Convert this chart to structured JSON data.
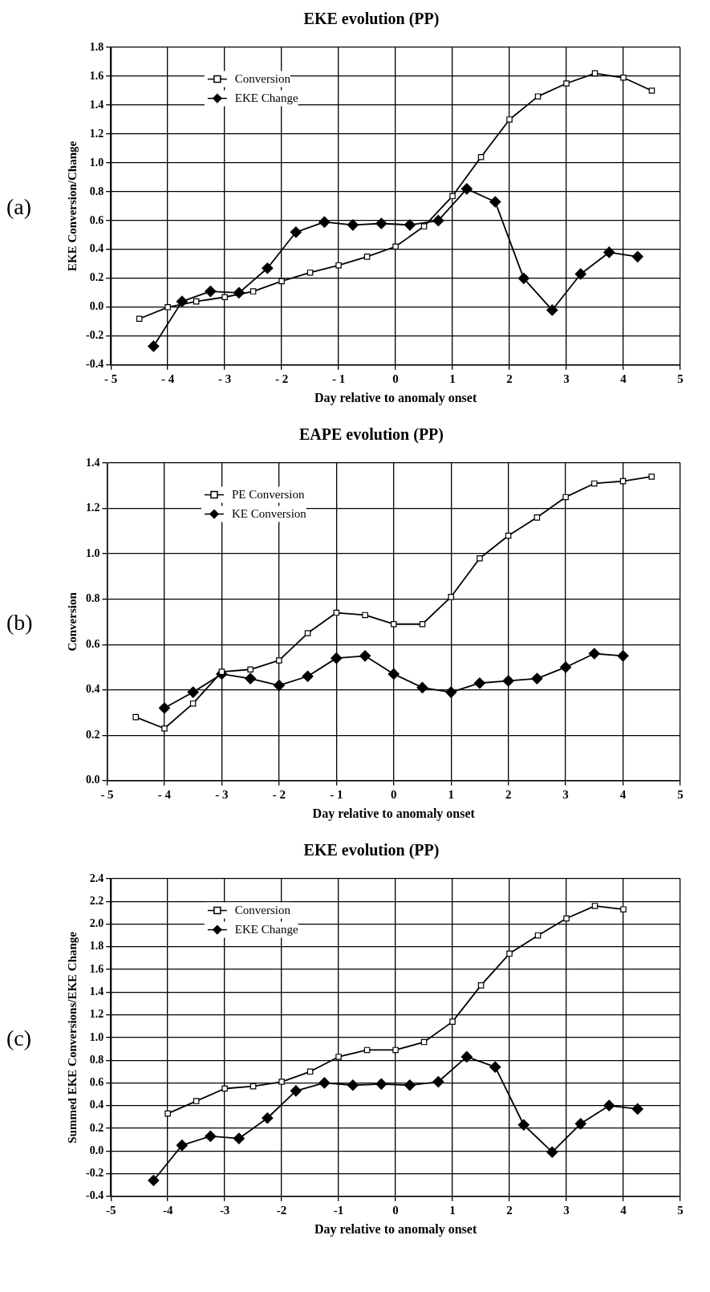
{
  "chart_data": [
    {
      "type": "line",
      "title": "EKE evolution (PP)",
      "xlabel": "Day relative to anomaly onset",
      "ylabel": "EKE Conversion/Change",
      "annotations": [
        "(a)"
      ],
      "grid": true,
      "legend": "top left",
      "line_style": "solid",
      "xlim": [
        -5,
        5
      ],
      "xticks": [
        {
          "value": -5,
          "label": "- 5"
        },
        {
          "value": -4,
          "label": "- 4"
        },
        {
          "value": -3,
          "label": "- 3"
        },
        {
          "value": -2,
          "label": "- 2"
        },
        {
          "value": -1,
          "label": "- 1"
        },
        0,
        1,
        2,
        3,
        4,
        5
      ],
      "ylim": [
        -0.4,
        1.8
      ],
      "yticks": [
        -0.4,
        -0.2,
        {
          "value": 0,
          "label": "0.0"
        },
        0.2,
        0.4,
        0.6,
        0.8,
        {
          "value": 1,
          "label": "1.0"
        },
        1.2,
        1.4,
        1.6,
        1.8
      ],
      "series": [
        {
          "name": "Conversion",
          "color": "#000000",
          "marker": "square",
          "x": [
            -4.5,
            -4,
            -3.5,
            -3,
            -2.5,
            -2,
            -1.5,
            -1,
            -0.5,
            0,
            0.5,
            1,
            1.5,
            2,
            2.5,
            3,
            3.5,
            4,
            4.5
          ],
          "values": [
            -0.08,
            0,
            0.04,
            0.07,
            0.11,
            0.18,
            0.24,
            0.29,
            0.35,
            0.42,
            0.56,
            0.77,
            1.04,
            1.3,
            1.46,
            1.55,
            1.62,
            1.59,
            1.5
          ]
        },
        {
          "name": "EKE Change",
          "color": "#000000",
          "marker": "diamond",
          "x": [
            -4.25,
            -3.75,
            -3.25,
            -2.75,
            -2.25,
            -1.75,
            -1.25,
            -0.75,
            -0.25,
            0.25,
            0.75,
            1.25,
            1.75,
            2.25,
            2.75,
            3.25,
            3.75,
            4.25
          ],
          "values": [
            -0.27,
            0.04,
            0.11,
            0.1,
            0.27,
            0.52,
            0.59,
            0.57,
            0.58,
            0.57,
            0.6,
            0.82,
            0.73,
            0.2,
            -0.02,
            0.23,
            0.38,
            0.35
          ]
        }
      ]
    },
    {
      "type": "line",
      "title": "EAPE evolution (PP)",
      "xlabel": "Day relative to anomaly onset",
      "ylabel": "Conversion",
      "annotations": [
        "(b)"
      ],
      "grid": true,
      "legend": "top left",
      "line_style": "solid",
      "xlim": [
        -5,
        5
      ],
      "xticks": [
        {
          "value": -5,
          "label": "- 5"
        },
        {
          "value": -4,
          "label": "- 4"
        },
        {
          "value": -3,
          "label": "- 3"
        },
        {
          "value": -2,
          "label": "- 2"
        },
        {
          "value": -1,
          "label": "- 1"
        },
        0,
        1,
        2,
        3,
        4,
        5
      ],
      "ylim": [
        0,
        1.4
      ],
      "yticks": [
        {
          "value": 0,
          "label": "0.0"
        },
        0.2,
        0.4,
        0.6,
        0.8,
        {
          "value": 1,
          "label": "1.0"
        },
        1.2,
        1.4
      ],
      "series": [
        {
          "name": "PE Conversion",
          "color": "#000000",
          "marker": "square",
          "x": [
            -4.5,
            -4,
            -3.5,
            -3,
            -2.5,
            -2,
            -1.5,
            -1,
            -0.5,
            0,
            0.5,
            1,
            1.5,
            2,
            2.5,
            3,
            3.5,
            4,
            4.5
          ],
          "values": [
            0.28,
            0.23,
            0.34,
            0.48,
            0.49,
            0.53,
            0.65,
            0.74,
            0.73,
            0.69,
            0.69,
            0.81,
            0.98,
            1.08,
            1.16,
            1.25,
            1.31,
            1.32,
            1.34
          ]
        },
        {
          "name": "KE Conversion",
          "color": "#000000",
          "marker": "diamond",
          "x": [
            -4,
            -3.5,
            -3,
            -2.5,
            -2,
            -1.5,
            -1,
            -0.5,
            0,
            0.5,
            1,
            1.5,
            2,
            2.5,
            3,
            3.5,
            4
          ],
          "values": [
            0.32,
            0.39,
            0.47,
            0.45,
            0.42,
            0.46,
            0.54,
            0.55,
            0.47,
            0.41,
            0.39,
            0.43,
            0.44,
            0.45,
            0.5,
            0.56,
            0.55
          ]
        }
      ]
    },
    {
      "type": "line",
      "title": "EKE evolution (PP)",
      "xlabel": "Day relative to anomaly onset",
      "ylabel": "Summed EKE Conversions/EKE Change",
      "annotations": [
        "(c)"
      ],
      "grid": true,
      "legend": "top left",
      "line_style": "solid",
      "xlim": [
        -5,
        5
      ],
      "xticks": [
        -5,
        -4,
        -3,
        -2,
        -1,
        0,
        1,
        2,
        3,
        4,
        5
      ],
      "ylim": [
        -0.4,
        2.4
      ],
      "yticks": [
        -0.4,
        -0.2,
        {
          "value": 0,
          "label": "0.0"
        },
        0.2,
        0.4,
        0.6,
        0.8,
        {
          "value": 1,
          "label": "1.0"
        },
        1.2,
        1.4,
        1.6,
        1.8,
        {
          "value": 2,
          "label": "2.0"
        },
        2.2,
        2.4
      ],
      "series": [
        {
          "name": "Conversion",
          "color": "#000000",
          "marker": "square",
          "x": [
            -4,
            -3.5,
            -3,
            -2.5,
            -2,
            -1.5,
            -1,
            -0.5,
            0,
            0.5,
            1,
            1.5,
            2,
            2.5,
            3,
            3.5,
            4
          ],
          "values": [
            0.33,
            0.44,
            0.55,
            0.57,
            0.61,
            0.7,
            0.83,
            0.89,
            0.89,
            0.96,
            1.14,
            1.46,
            1.74,
            1.9,
            2.05,
            2.16,
            2.13
          ]
        },
        {
          "name": "EKE Change",
          "color": "#000000",
          "marker": "diamond",
          "x": [
            -4.25,
            -3.75,
            -3.25,
            -2.75,
            -2.25,
            -1.75,
            -1.25,
            -0.75,
            -0.25,
            0.25,
            0.75,
            1.25,
            1.75,
            2.25,
            2.75,
            3.25,
            3.75,
            4.25
          ],
          "values": [
            -0.26,
            0.05,
            0.13,
            0.11,
            0.29,
            0.53,
            0.6,
            0.58,
            0.59,
            0.58,
            0.61,
            0.83,
            0.74,
            0.23,
            -0.01,
            0.24,
            0.4,
            0.37
          ]
        }
      ]
    }
  ]
}
